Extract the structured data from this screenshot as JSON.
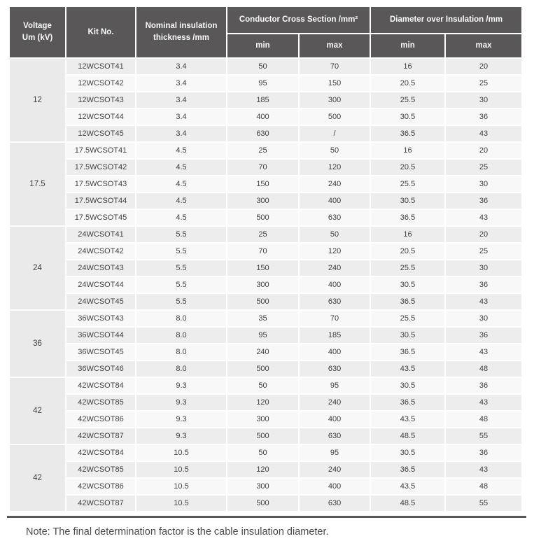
{
  "colors": {
    "header_bg": "#595757",
    "header_text": "#fbfbfb",
    "row_odd": "#ededed",
    "row_even": "#f8f8f8",
    "voltage_bg": "#eaeaea",
    "body_text": "#3f3f3f",
    "note_text": "#4a4a4a",
    "bottom_rule": "#595757"
  },
  "table": {
    "headers": {
      "voltage": "Voltage\nUm (kV)",
      "kit_no": "Kit No.",
      "thickness": "Nominal insulation\nthickness /mm",
      "conductor_cross_section": "Conductor Cross Section /mm²",
      "diameter_over_insulation": "Diameter over Insulation /mm",
      "min": "min",
      "max": "max"
    },
    "groups": [
      {
        "voltage": "12",
        "rows": [
          {
            "kit": "12WCSOT41",
            "thickness": "3.4",
            "ccs_min": "50",
            "ccs_max": "70",
            "doi_min": "16",
            "doi_max": "20"
          },
          {
            "kit": "12WCSOT42",
            "thickness": "3.4",
            "ccs_min": "95",
            "ccs_max": "150",
            "doi_min": "20.5",
            "doi_max": "25"
          },
          {
            "kit": "12WCSOT43",
            "thickness": "3.4",
            "ccs_min": "185",
            "ccs_max": "300",
            "doi_min": "25.5",
            "doi_max": "30"
          },
          {
            "kit": "12WCSOT44",
            "thickness": "3.4",
            "ccs_min": "400",
            "ccs_max": "500",
            "doi_min": "30.5",
            "doi_max": "36"
          },
          {
            "kit": "12WCSOT45",
            "thickness": "3.4",
            "ccs_min": "630",
            "ccs_max": "/",
            "doi_min": "36.5",
            "doi_max": "43"
          }
        ]
      },
      {
        "voltage": "17.5",
        "rows": [
          {
            "kit": "17.5WCSOT41",
            "thickness": "4.5",
            "ccs_min": "25",
            "ccs_max": "50",
            "doi_min": "16",
            "doi_max": "20"
          },
          {
            "kit": "17.5WCSOT42",
            "thickness": "4.5",
            "ccs_min": "70",
            "ccs_max": "120",
            "doi_min": "20.5",
            "doi_max": "25"
          },
          {
            "kit": "17.5WCSOT43",
            "thickness": "4.5",
            "ccs_min": "150",
            "ccs_max": "240",
            "doi_min": "25.5",
            "doi_max": "30"
          },
          {
            "kit": "17.5WCSOT44",
            "thickness": "4.5",
            "ccs_min": "300",
            "ccs_max": "400",
            "doi_min": "30.5",
            "doi_max": "36"
          },
          {
            "kit": "17.5WCSOT45",
            "thickness": "4.5",
            "ccs_min": "500",
            "ccs_max": "630",
            "doi_min": "36.5",
            "doi_max": "43"
          }
        ]
      },
      {
        "voltage": "24",
        "rows": [
          {
            "kit": "24WCSOT41",
            "thickness": "5.5",
            "ccs_min": "25",
            "ccs_max": "50",
            "doi_min": "16",
            "doi_max": "20"
          },
          {
            "kit": "24WCSOT42",
            "thickness": "5.5",
            "ccs_min": "70",
            "ccs_max": "120",
            "doi_min": "20.5",
            "doi_max": "25"
          },
          {
            "kit": "24WCSOT43",
            "thickness": "5.5",
            "ccs_min": "150",
            "ccs_max": "240",
            "doi_min": "25.5",
            "doi_max": "30"
          },
          {
            "kit": "24WCSOT44",
            "thickness": "5.5",
            "ccs_min": "300",
            "ccs_max": "400",
            "doi_min": "30.5",
            "doi_max": "36"
          },
          {
            "kit": "24WCSOT45",
            "thickness": "5.5",
            "ccs_min": "500",
            "ccs_max": "630",
            "doi_min": "36.5",
            "doi_max": "43"
          }
        ]
      },
      {
        "voltage": "36",
        "rows": [
          {
            "kit": "36WCSOT43",
            "thickness": "8.0",
            "ccs_min": "35",
            "ccs_max": "70",
            "doi_min": "25.5",
            "doi_max": "30"
          },
          {
            "kit": "36WCSOT44",
            "thickness": "8.0",
            "ccs_min": "95",
            "ccs_max": "185",
            "doi_min": "30.5",
            "doi_max": "36"
          },
          {
            "kit": "36WCSOT45",
            "thickness": "8.0",
            "ccs_min": "240",
            "ccs_max": "400",
            "doi_min": "36.5",
            "doi_max": "43"
          },
          {
            "kit": "36WCSOT46",
            "thickness": "8.0",
            "ccs_min": "500",
            "ccs_max": "630",
            "doi_min": "43.5",
            "doi_max": "48"
          }
        ]
      },
      {
        "voltage": "42",
        "rows": [
          {
            "kit": "42WCSOT84",
            "thickness": "9.3",
            "ccs_min": "50",
            "ccs_max": "95",
            "doi_min": "30.5",
            "doi_max": "36"
          },
          {
            "kit": "42WCSOT85",
            "thickness": "9.3",
            "ccs_min": "120",
            "ccs_max": "240",
            "doi_min": "36.5",
            "doi_max": "43"
          },
          {
            "kit": "42WCSOT86",
            "thickness": "9.3",
            "ccs_min": "300",
            "ccs_max": "400",
            "doi_min": "43.5",
            "doi_max": "48"
          },
          {
            "kit": "42WCSOT87",
            "thickness": "9.3",
            "ccs_min": "500",
            "ccs_max": "630",
            "doi_min": "48.5",
            "doi_max": "55"
          }
        ]
      },
      {
        "voltage": "42",
        "rows": [
          {
            "kit": "42WCSOT84",
            "thickness": "10.5",
            "ccs_min": "50",
            "ccs_max": "95",
            "doi_min": "30.5",
            "doi_max": "36"
          },
          {
            "kit": "42WCSOT85",
            "thickness": "10.5",
            "ccs_min": "120",
            "ccs_max": "240",
            "doi_min": "36.5",
            "doi_max": "43"
          },
          {
            "kit": "42WCSOT86",
            "thickness": "10.5",
            "ccs_min": "300",
            "ccs_max": "400",
            "doi_min": "43.5",
            "doi_max": "48"
          },
          {
            "kit": "42WCSOT87",
            "thickness": "10.5",
            "ccs_min": "500",
            "ccs_max": "630",
            "doi_min": "48.5",
            "doi_max": "55"
          }
        ]
      }
    ]
  },
  "note": "Note: The final determination factor is the cable insulation diameter."
}
